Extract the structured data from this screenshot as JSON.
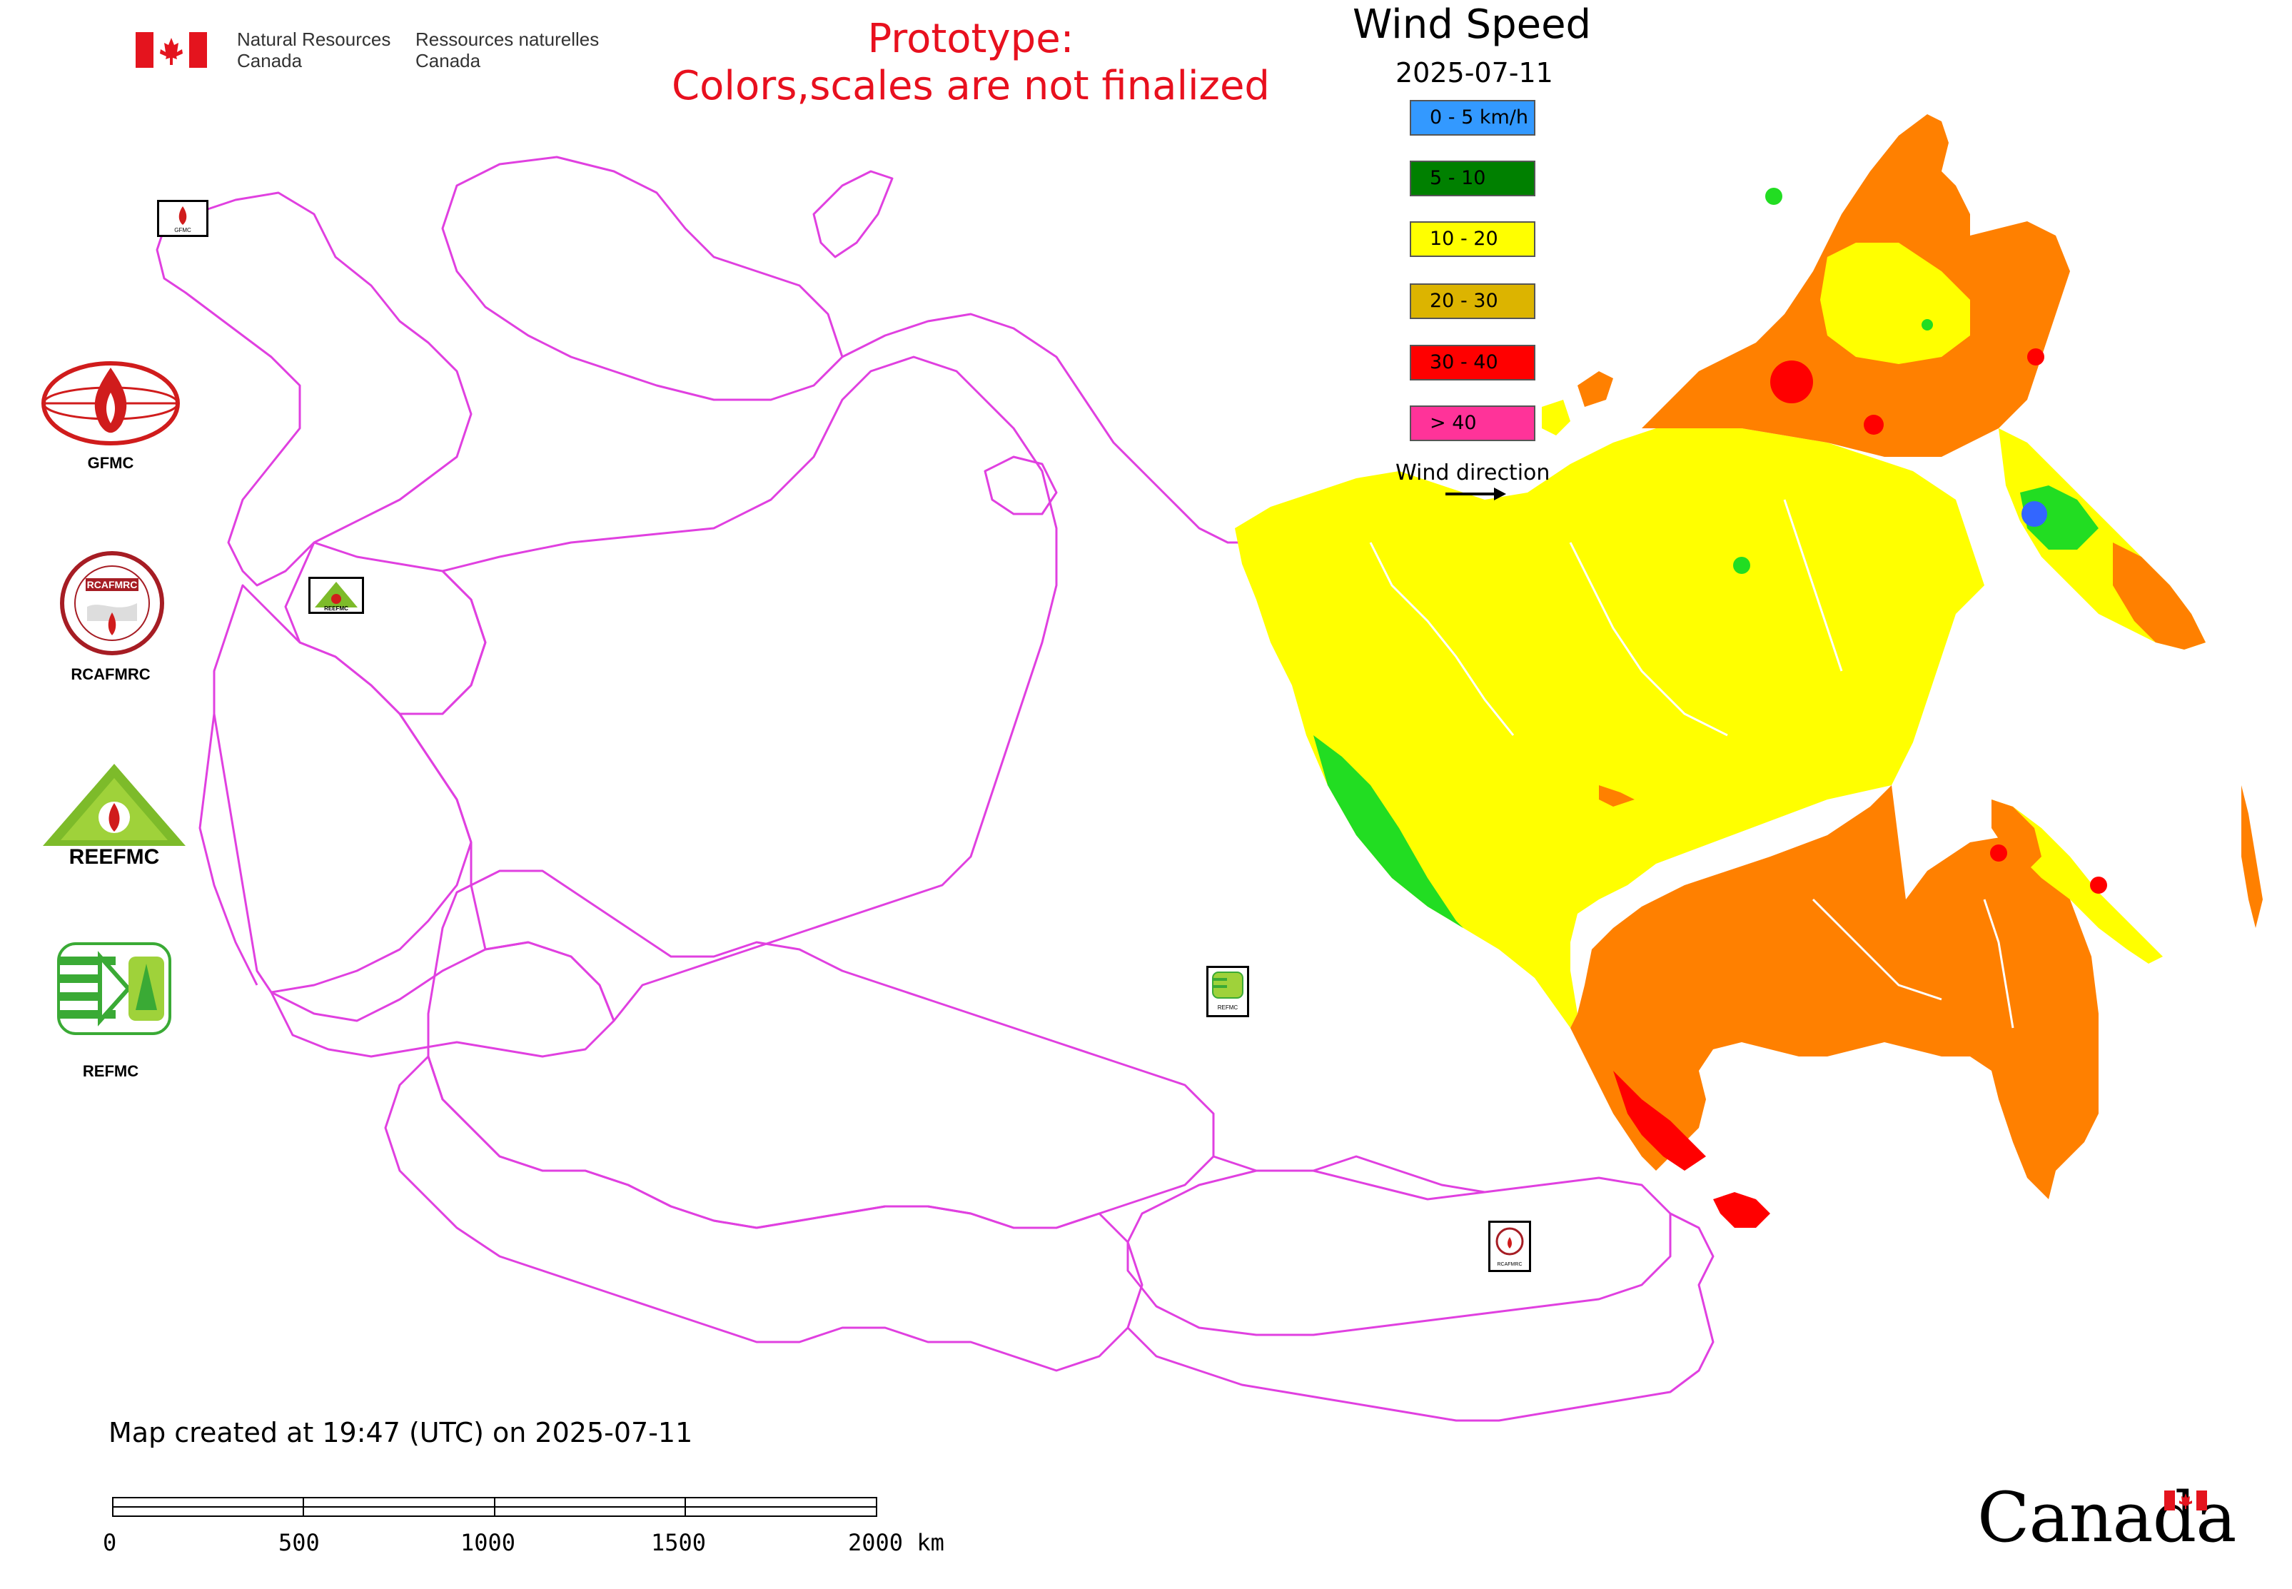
{
  "header": {
    "agency_en_line1": "Natural Resources",
    "agency_en_line2": "Canada",
    "agency_fr_line1": "Ressources naturelles",
    "agency_fr_line2": "Canada",
    "flag_color": "#e4141e"
  },
  "notice": {
    "line1": "Prototype:",
    "line2": "Colors,scales are not finalized",
    "color": "#e8101e"
  },
  "legend": {
    "title": "Wind Speed",
    "date": "2025-07-11",
    "classes": [
      {
        "label": "0 - 5 km/h",
        "color": "#3399ff"
      },
      {
        "label": "5 - 10",
        "color": "#008000"
      },
      {
        "label": "10 - 20",
        "color": "#ffff00"
      },
      {
        "label": "20 - 30",
        "color": "#dcb400"
      },
      {
        "label": "30 - 40",
        "color": "#ff0000"
      },
      {
        "label": "> 40",
        "color": "#ff3399"
      }
    ],
    "wind_direction_label": "Wind direction"
  },
  "logos": {
    "gfmc": "GFMC",
    "rcafmrc": "RCAFMRC",
    "reefmc_brand": "REEFMC",
    "refmc": "REFMC",
    "small_gfmc": "GFMC",
    "small_reefmc": "REEFMC",
    "small_refmc": "REFMC",
    "small_rcafmrc": "RCAFMRC"
  },
  "footer": {
    "created": "Map created at 19:47 (UTC) on 2025-07-11",
    "scale_labels": [
      "0",
      "500",
      "1000",
      "1500",
      "2000 km"
    ],
    "wordmark": "Canada"
  },
  "map": {
    "border_color": "#e040e0",
    "zone_colors": {
      "light_yellow": "#ffff00",
      "orange": "#ff8000",
      "green": "#22dd22",
      "red": "#ff0000",
      "blue": "#3366ff"
    }
  }
}
